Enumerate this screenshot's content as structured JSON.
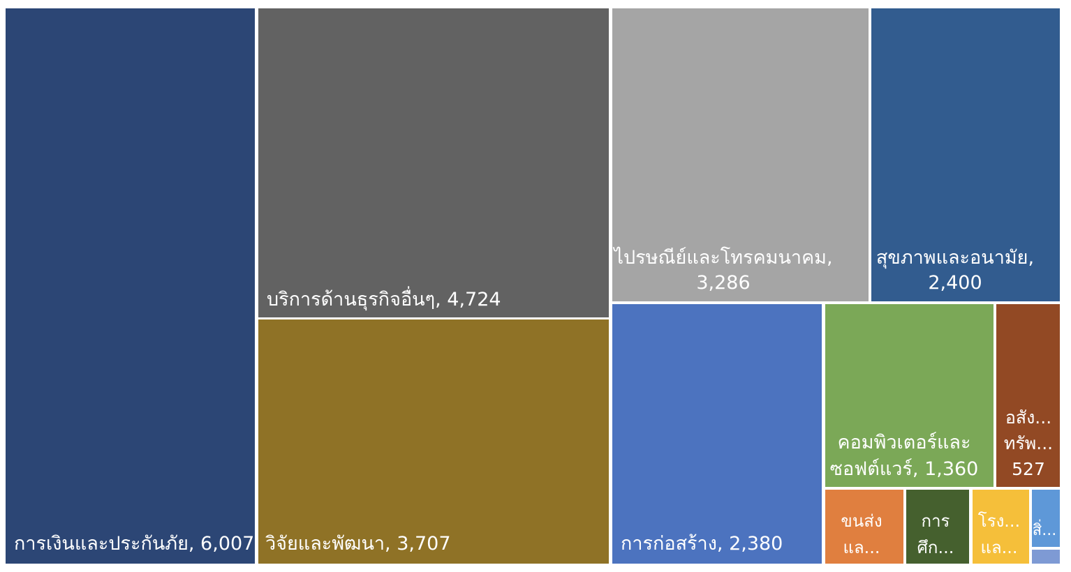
{
  "chart_data": {
    "type": "treemap",
    "title": "",
    "colors_note": "tile fill colors as shown",
    "items": [
      {
        "name": "การเงินและประกันภัย",
        "value": 6007,
        "value_label": "6,007",
        "label_lines": [
          "การเงินและประกันภัย, 6,007"
        ],
        "color": "#2c4675"
      },
      {
        "name": "บริการด้านธุรกิจอื่นๆ",
        "value": 4724,
        "value_label": "4,724",
        "label_lines": [
          "บริการด้านธุรกิจอื่นๆ, 4,724"
        ],
        "color": "#626262"
      },
      {
        "name": "วิจัยและพัฒนา",
        "value": 3707,
        "value_label": "3,707",
        "label_lines": [
          "วิจัยและพัฒนา, 3,707"
        ],
        "color": "#8f7226"
      },
      {
        "name": "ไปรษณีย์และโทรคมนาคม",
        "value": 3286,
        "value_label": "3,286",
        "label_lines": [
          "ไปรษณีย์และโทรคมนาคม,",
          "3,286"
        ],
        "color": "#a5a5a5"
      },
      {
        "name": "สุขภาพและอนามัย",
        "value": 2400,
        "value_label": "2,400",
        "label_lines": [
          "สุขภาพและอนามัย,",
          "2,400"
        ],
        "color": "#325c8f"
      },
      {
        "name": "การก่อสร้าง",
        "value": 2380,
        "value_label": "2,380",
        "label_lines": [
          "การก่อสร้าง, 2,380"
        ],
        "color": "#4c73bf"
      },
      {
        "name": "คอมพิวเตอร์และซอฟต์แวร์",
        "value": 1360,
        "value_label": "1,360",
        "label_lines": [
          "คอมพิวเตอร์และ",
          "ซอฟต์แวร์, 1,360"
        ],
        "color": "#7ba857"
      },
      {
        "name": "อสังหาริมทรัพย์",
        "value": 527,
        "value_label": "527",
        "label_lines": [
          "อสัง...",
          "ทรัพ...",
          "527"
        ],
        "color": "#924924"
      },
      {
        "name": "ขนส่งและ...",
        "value": null,
        "value_label": "",
        "label_lines": [
          "ขนส่ง",
          "แล..."
        ],
        "color": "#e07f3f"
      },
      {
        "name": "การศึก...",
        "value": null,
        "value_label": "",
        "label_lines": [
          "การ",
          "ศึก..."
        ],
        "color": "#45602e"
      },
      {
        "name": "โรง...และ...",
        "value": null,
        "value_label": "",
        "label_lines": [
          "โรง...",
          "แล..."
        ],
        "color": "#f5bf3a"
      },
      {
        "name": "สิ่...",
        "value": null,
        "value_label": "",
        "label_lines": [
          "สิ่..."
        ],
        "color": "#5e98d8"
      },
      {
        "name": "",
        "value": null,
        "value_label": "",
        "label_lines": [],
        "color": "#7e9ad4"
      }
    ]
  }
}
